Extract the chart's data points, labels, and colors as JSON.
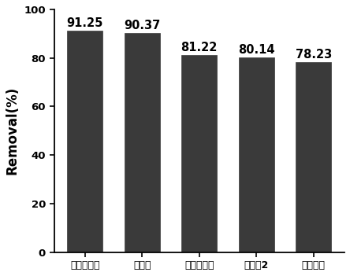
{
  "categories": [
    "左氧氟沙星",
    "土霉素",
    "盐酸四环素",
    "活性红2",
    "诺氟沙星"
  ],
  "values": [
    91.25,
    90.37,
    81.22,
    80.14,
    78.23
  ],
  "bar_color": "#3a3a3a",
  "bar_edge_color": "#3a3a3a",
  "ylabel": "Removal(%)",
  "ylim": [
    0,
    100
  ],
  "yticks": [
    0,
    20,
    40,
    60,
    80,
    100
  ],
  "value_labels": [
    "91.25",
    "90.37",
    "81.22",
    "80.14",
    "78.23"
  ],
  "value_fontsize": 10.5,
  "ylabel_fontsize": 12,
  "tick_fontsize": 9.5,
  "xtick_fontsize": 9,
  "bar_width": 0.62,
  "background_color": "#ffffff"
}
